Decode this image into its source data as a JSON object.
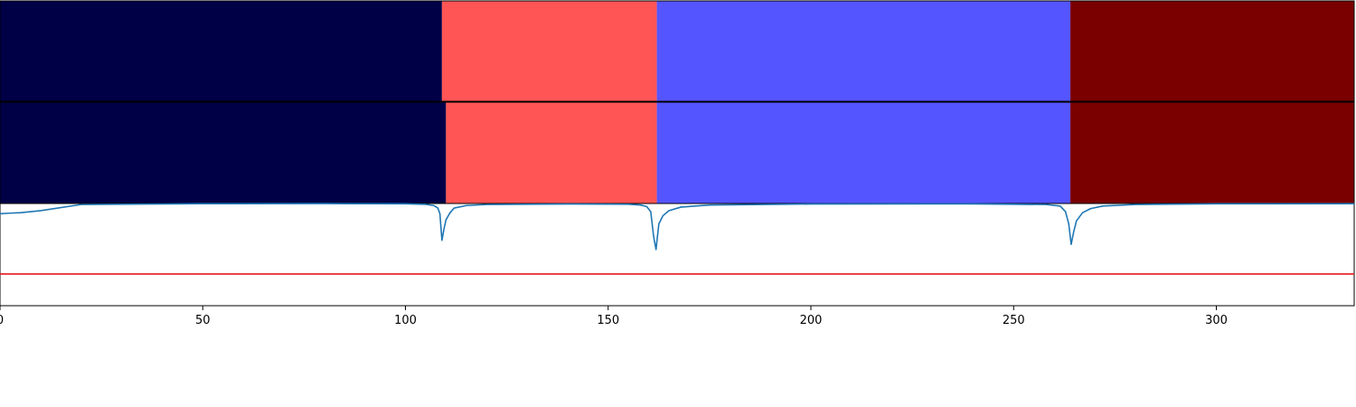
{
  "chart_data": [
    {
      "type": "segmentation",
      "role": "ground-truth",
      "segments": [
        {
          "start": 0,
          "end": 109,
          "color": "#000046"
        },
        {
          "start": 109,
          "end": 162,
          "color": "#ff5555"
        },
        {
          "start": 162,
          "end": 264,
          "color": "#5555ff"
        },
        {
          "start": 264,
          "end": 334,
          "color": "#7a0000"
        }
      ]
    },
    {
      "type": "segmentation",
      "role": "prediction",
      "segments": [
        {
          "start": 0,
          "end": 110,
          "color": "#000046"
        },
        {
          "start": 110,
          "end": 162,
          "color": "#ff5555"
        },
        {
          "start": 162,
          "end": 264,
          "color": "#5555ff"
        },
        {
          "start": 264,
          "end": 334,
          "color": "#7a0000"
        }
      ]
    },
    {
      "type": "line",
      "xlim": [
        0,
        334
      ],
      "ylim": [
        0,
        1
      ],
      "xticks": [
        0,
        50,
        100,
        150,
        200,
        250,
        300
      ],
      "threshold": {
        "y": 0.31,
        "color": "#e31a1c"
      },
      "series": [
        {
          "color": "#1f77b4",
          "x": [
            0,
            2,
            5,
            10,
            20,
            50,
            80,
            100,
            105,
            107,
            108,
            108.5,
            109,
            109.5,
            110,
            111,
            112,
            115,
            120,
            140,
            155,
            158,
            159.5,
            160.5,
            161.2,
            161.8,
            162.5,
            163.5,
            165,
            168,
            175,
            200,
            240,
            258,
            261.5,
            262.8,
            263.6,
            264.2,
            264.8,
            265.5,
            267,
            269,
            272,
            280,
            300,
            334
          ],
          "y": [
            0.9,
            0.905,
            0.91,
            0.93,
            0.99,
            0.998,
            0.999,
            0.997,
            0.992,
            0.98,
            0.955,
            0.9,
            0.64,
            0.75,
            0.84,
            0.91,
            0.955,
            0.98,
            0.99,
            0.995,
            0.993,
            0.985,
            0.97,
            0.92,
            0.68,
            0.55,
            0.8,
            0.88,
            0.93,
            0.965,
            0.985,
            0.995,
            0.996,
            0.99,
            0.975,
            0.92,
            0.8,
            0.6,
            0.72,
            0.83,
            0.91,
            0.95,
            0.975,
            0.99,
            0.997,
            0.998
          ]
        }
      ]
    }
  ]
}
